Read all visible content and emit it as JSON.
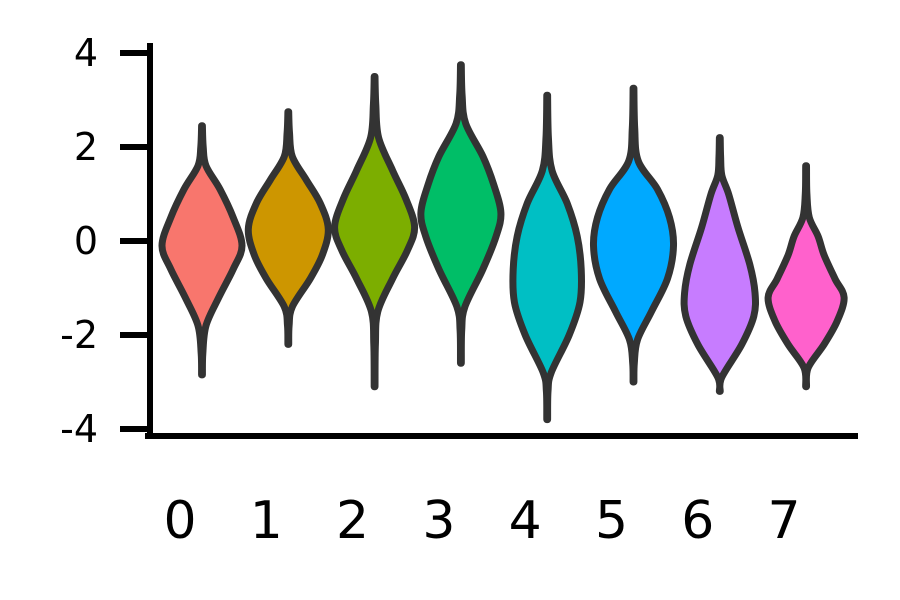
{
  "chart_data": {
    "type": "violin",
    "title": "",
    "xlabel": "",
    "ylabel": "",
    "ylim": [
      -4,
      4
    ],
    "y_ticks": [
      4,
      2,
      0,
      -2,
      -4
    ],
    "y_tick_labels": [
      "4",
      "2",
      "0",
      "-2",
      "-4"
    ],
    "categories": [
      "0",
      "1",
      "2",
      "3",
      "4",
      "5",
      "6",
      "7"
    ],
    "grid": false,
    "legend": "none",
    "outline_color": "#333333",
    "violins": [
      {
        "category": "0",
        "color": "#F8766D",
        "min": -2.85,
        "max": 2.45,
        "median": -0.1,
        "profile": [
          [
            -2.85,
            0.01
          ],
          [
            -2.4,
            0.02
          ],
          [
            -1.8,
            0.1
          ],
          [
            -1.2,
            0.42
          ],
          [
            -0.6,
            0.78
          ],
          [
            -0.1,
            1.0
          ],
          [
            0.5,
            0.78
          ],
          [
            1.1,
            0.45
          ],
          [
            1.6,
            0.1
          ],
          [
            2.0,
            0.03
          ],
          [
            2.45,
            0.01
          ]
        ]
      },
      {
        "category": "1",
        "color": "#CD9600",
        "min": -2.2,
        "max": 2.75,
        "median": 0.25,
        "profile": [
          [
            -2.2,
            0.01
          ],
          [
            -1.8,
            0.02
          ],
          [
            -1.4,
            0.1
          ],
          [
            -0.8,
            0.55
          ],
          [
            -0.3,
            0.85
          ],
          [
            0.25,
            1.0
          ],
          [
            0.8,
            0.8
          ],
          [
            1.3,
            0.45
          ],
          [
            1.8,
            0.1
          ],
          [
            2.3,
            0.03
          ],
          [
            2.75,
            0.01
          ]
        ]
      },
      {
        "category": "2",
        "color": "#7CAE00",
        "min": -3.1,
        "max": 3.5,
        "median": 0.3,
        "profile": [
          [
            -3.1,
            0.01
          ],
          [
            -2.2,
            0.02
          ],
          [
            -1.5,
            0.08
          ],
          [
            -0.8,
            0.45
          ],
          [
            -0.2,
            0.82
          ],
          [
            0.3,
            1.0
          ],
          [
            0.9,
            0.78
          ],
          [
            1.5,
            0.45
          ],
          [
            2.2,
            0.1
          ],
          [
            2.9,
            0.03
          ],
          [
            3.5,
            0.01
          ]
        ]
      },
      {
        "category": "3",
        "color": "#00BE67",
        "min": -2.6,
        "max": 3.75,
        "median": 0.6,
        "profile": [
          [
            -2.6,
            0.01
          ],
          [
            -1.9,
            0.02
          ],
          [
            -1.4,
            0.1
          ],
          [
            -0.6,
            0.55
          ],
          [
            0.1,
            0.88
          ],
          [
            0.6,
            1.0
          ],
          [
            1.2,
            0.82
          ],
          [
            1.8,
            0.55
          ],
          [
            2.5,
            0.12
          ],
          [
            3.1,
            0.03
          ],
          [
            3.75,
            0.01
          ]
        ]
      },
      {
        "category": "4",
        "color": "#00BFC4",
        "min": -3.8,
        "max": 3.1,
        "median": -0.6,
        "profile": [
          [
            -3.8,
            0.01
          ],
          [
            -3.2,
            0.02
          ],
          [
            -2.8,
            0.1
          ],
          [
            -2.0,
            0.55
          ],
          [
            -1.3,
            0.82
          ],
          [
            -0.6,
            0.85
          ],
          [
            0.1,
            0.75
          ],
          [
            0.8,
            0.5
          ],
          [
            1.5,
            0.12
          ],
          [
            2.2,
            0.03
          ],
          [
            3.1,
            0.01
          ]
        ]
      },
      {
        "category": "5",
        "color": "#00A9FF",
        "min": -3.0,
        "max": 3.25,
        "median": -0.1,
        "profile": [
          [
            -3.0,
            0.01
          ],
          [
            -2.6,
            0.02
          ],
          [
            -2.1,
            0.1
          ],
          [
            -1.5,
            0.45
          ],
          [
            -0.8,
            0.85
          ],
          [
            -0.1,
            1.0
          ],
          [
            0.5,
            0.9
          ],
          [
            1.1,
            0.6
          ],
          [
            1.7,
            0.12
          ],
          [
            2.4,
            0.03
          ],
          [
            3.25,
            0.01
          ]
        ]
      },
      {
        "category": "6",
        "color": "#C77CFF",
        "min": -3.2,
        "max": 2.2,
        "median": -1.1,
        "profile": [
          [
            -3.2,
            0.01
          ],
          [
            -2.9,
            0.05
          ],
          [
            -2.2,
            0.55
          ],
          [
            -1.6,
            0.85
          ],
          [
            -1.1,
            0.88
          ],
          [
            -0.5,
            0.75
          ],
          [
            0.3,
            0.45
          ],
          [
            1.0,
            0.22
          ],
          [
            1.4,
            0.05
          ],
          [
            1.8,
            0.02
          ],
          [
            2.2,
            0.01
          ]
        ]
      },
      {
        "category": "7",
        "color": "#FF61CC",
        "min": -3.1,
        "max": 1.6,
        "median": -1.2,
        "profile": [
          [
            -3.1,
            0.01
          ],
          [
            -2.7,
            0.05
          ],
          [
            -2.2,
            0.45
          ],
          [
            -1.7,
            0.78
          ],
          [
            -1.2,
            0.95
          ],
          [
            -0.8,
            0.72
          ],
          [
            -0.3,
            0.45
          ],
          [
            0.1,
            0.3
          ],
          [
            0.5,
            0.08
          ],
          [
            1.0,
            0.02
          ],
          [
            1.6,
            0.01
          ]
        ]
      }
    ]
  }
}
